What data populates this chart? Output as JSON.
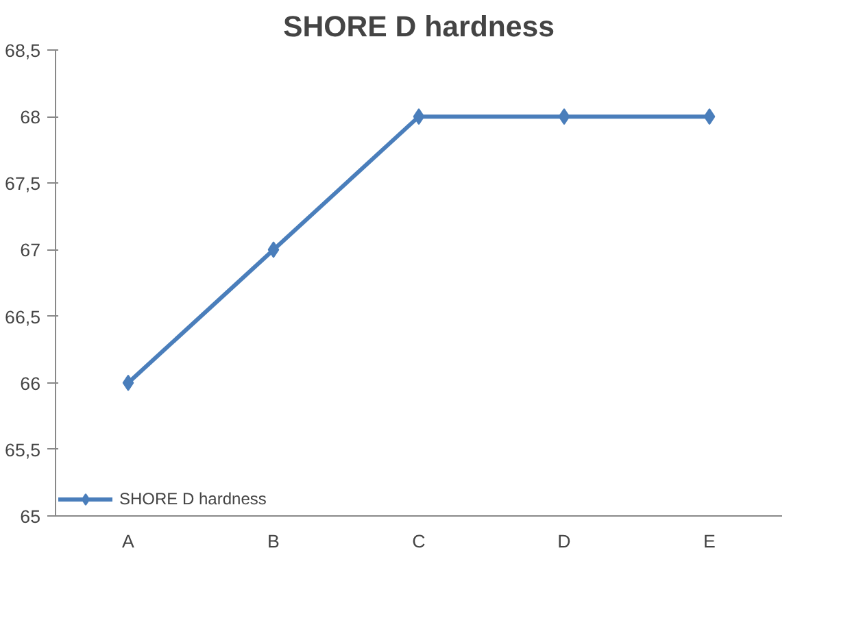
{
  "chart_data": {
    "type": "line",
    "title": "SHORE D hardness",
    "categories": [
      "A",
      "B",
      "C",
      "D",
      "E"
    ],
    "series": [
      {
        "name": "SHORE D hardness",
        "color": "#4a7ebb",
        "values": [
          66,
          67,
          68,
          68,
          68
        ]
      }
    ],
    "ylim": [
      65,
      68.5
    ],
    "yticks": [
      65,
      {
        "value": 65.5,
        "label": "65,5"
      },
      66,
      {
        "value": 66.5,
        "label": "66,5"
      },
      67,
      {
        "value": 67.5,
        "label": "67,5"
      },
      68,
      {
        "value": 68.5,
        "label": "68,5"
      }
    ],
    "grid": false,
    "legend": "bottom left",
    "marker": "diamond",
    "line_style": "solid"
  }
}
